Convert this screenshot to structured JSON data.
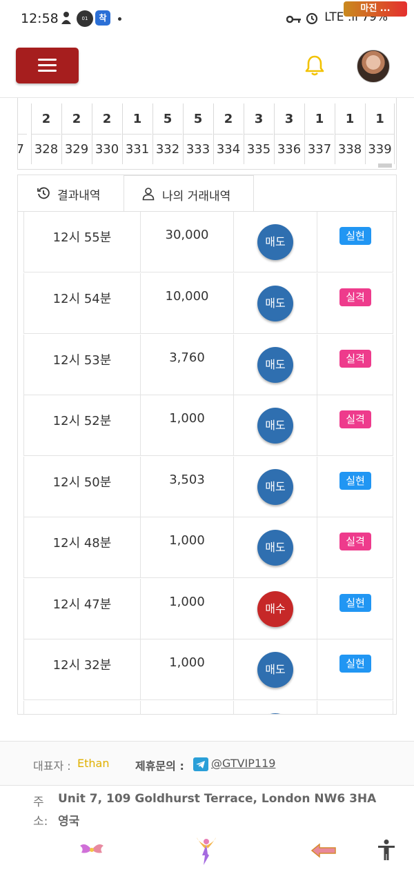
{
  "status_bar": {
    "time": "12:58",
    "notif_icon_2": "01 LOCK",
    "notif_icon_3": "착",
    "right_text": "LTE .ıl 79%",
    "site_logo": "마진 ..."
  },
  "header": {
    "menu_icon": "hamburger-icon",
    "bell_icon": "bell-icon",
    "bell_color": "#f2c200",
    "menu_color": "#a61e1e"
  },
  "strip": {
    "cells": [
      {
        "top": "",
        "bottom": "7"
      },
      {
        "top": "2",
        "bottom": "328"
      },
      {
        "top": "2",
        "bottom": "329"
      },
      {
        "top": "2",
        "bottom": "330"
      },
      {
        "top": "1",
        "bottom": "331"
      },
      {
        "top": "5",
        "bottom": "332"
      },
      {
        "top": "5",
        "bottom": "333"
      },
      {
        "top": "2",
        "bottom": "334"
      },
      {
        "top": "3",
        "bottom": "335"
      },
      {
        "top": "3",
        "bottom": "336"
      },
      {
        "top": "1",
        "bottom": "337"
      },
      {
        "top": "1",
        "bottom": "338"
      },
      {
        "top": "1",
        "bottom": "339"
      }
    ]
  },
  "tabs": {
    "results": "결과내역",
    "my_trades": "나의 거래내역"
  },
  "trades": [
    {
      "time": "12시 55분",
      "amount": "30,000",
      "action": "매도",
      "action_color": "#2f6fb0",
      "result": "실현",
      "result_color": "#2196f3"
    },
    {
      "time": "12시 54분",
      "amount": "10,000",
      "action": "매도",
      "action_color": "#2f6fb0",
      "result": "실격",
      "result_color": "#ee3b8c"
    },
    {
      "time": "12시 53분",
      "amount": "3,760",
      "action": "매도",
      "action_color": "#2f6fb0",
      "result": "실격",
      "result_color": "#ee3b8c"
    },
    {
      "time": "12시 52분",
      "amount": "1,000",
      "action": "매도",
      "action_color": "#2f6fb0",
      "result": "실격",
      "result_color": "#ee3b8c"
    },
    {
      "time": "12시 50분",
      "amount": "3,503",
      "action": "매도",
      "action_color": "#2f6fb0",
      "result": "실현",
      "result_color": "#2196f3"
    },
    {
      "time": "12시 48분",
      "amount": "1,000",
      "action": "매도",
      "action_color": "#2f6fb0",
      "result": "실격",
      "result_color": "#ee3b8c"
    },
    {
      "time": "12시 47분",
      "amount": "1,000",
      "action": "매수",
      "action_color": "#c62828",
      "result": "실현",
      "result_color": "#2196f3"
    },
    {
      "time": "12시 32분",
      "amount": "1,000",
      "action": "매도",
      "action_color": "#2f6fb0",
      "result": "실현",
      "result_color": "#2196f3"
    },
    {
      "time": "",
      "amount": "",
      "action": "",
      "action_color": "#2f6fb0",
      "result": "",
      "result_color": "#ffffff"
    }
  ],
  "footer": {
    "rep_label": "대표자 :",
    "rep_name": "Ethan",
    "contact_label": "제휴문의 :",
    "contact_handle": "@GTVIP119",
    "addr_key_1": "주",
    "addr_key_2": "소:",
    "addr_line_1": "Unit 7, 109 Goldhurst Terrace, London NW6 3HA",
    "addr_line_2": "영국"
  }
}
